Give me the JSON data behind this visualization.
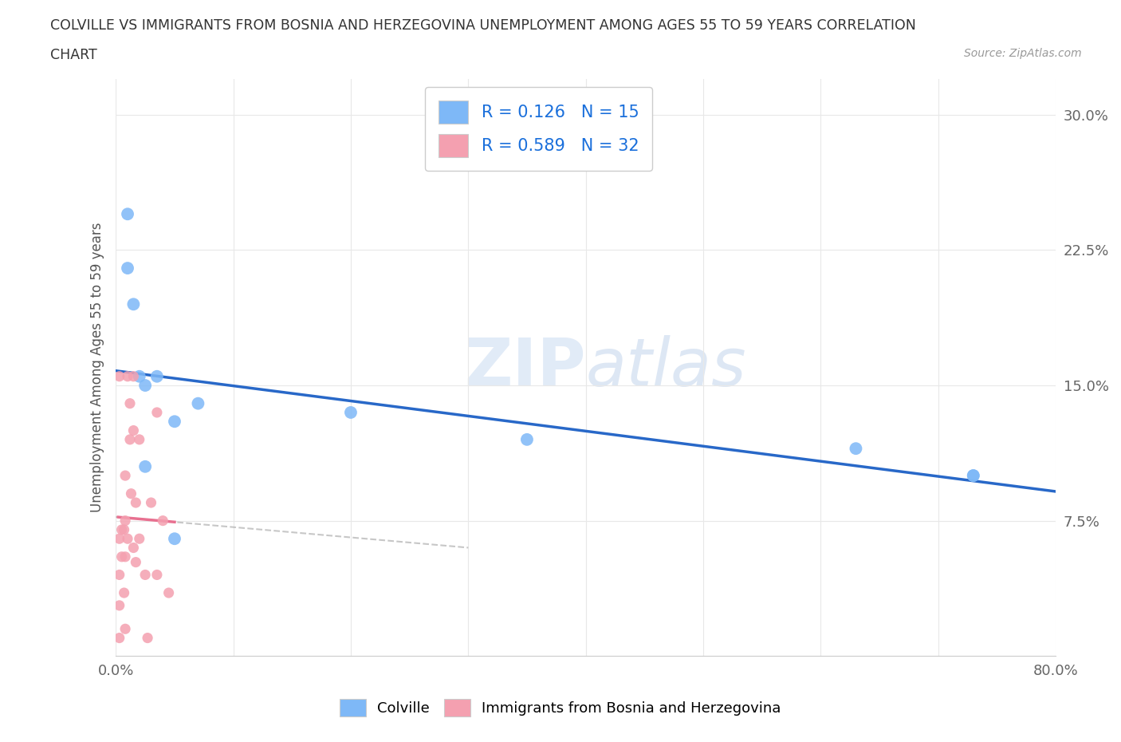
{
  "title_line1": "COLVILLE VS IMMIGRANTS FROM BOSNIA AND HERZEGOVINA UNEMPLOYMENT AMONG AGES 55 TO 59 YEARS CORRELATION",
  "title_line2": "CHART",
  "source_text": "Source: ZipAtlas.com",
  "ylabel": "Unemployment Among Ages 55 to 59 years",
  "xlim": [
    0,
    0.8
  ],
  "ylim": [
    0,
    0.32
  ],
  "xticks": [
    0.0,
    0.1,
    0.2,
    0.3,
    0.4,
    0.5,
    0.6,
    0.7,
    0.8
  ],
  "xticklabels": [
    "0.0%",
    "",
    "",
    "",
    "",
    "",
    "",
    "",
    "80.0%"
  ],
  "yticks": [
    0.0,
    0.075,
    0.15,
    0.225,
    0.3
  ],
  "yticklabels": [
    "",
    "7.5%",
    "15.0%",
    "22.5%",
    "30.0%"
  ],
  "colville_x": [
    0.01,
    0.01,
    0.015,
    0.02,
    0.025,
    0.025,
    0.035,
    0.05,
    0.05,
    0.07,
    0.2,
    0.35,
    0.63,
    0.73,
    0.73
  ],
  "colville_y": [
    0.245,
    0.215,
    0.195,
    0.155,
    0.15,
    0.105,
    0.155,
    0.13,
    0.065,
    0.14,
    0.135,
    0.12,
    0.115,
    0.1,
    0.1
  ],
  "bosnia_x": [
    0.003,
    0.003,
    0.003,
    0.003,
    0.003,
    0.005,
    0.005,
    0.007,
    0.007,
    0.008,
    0.008,
    0.008,
    0.008,
    0.01,
    0.01,
    0.012,
    0.012,
    0.013,
    0.015,
    0.015,
    0.015,
    0.017,
    0.017,
    0.02,
    0.02,
    0.025,
    0.027,
    0.03,
    0.035,
    0.035,
    0.04,
    0.045
  ],
  "bosnia_y": [
    0.155,
    0.065,
    0.045,
    0.028,
    0.01,
    0.07,
    0.055,
    0.07,
    0.035,
    0.1,
    0.075,
    0.055,
    0.015,
    0.155,
    0.065,
    0.14,
    0.12,
    0.09,
    0.155,
    0.125,
    0.06,
    0.085,
    0.052,
    0.12,
    0.065,
    0.045,
    0.01,
    0.085,
    0.135,
    0.045,
    0.075,
    0.035
  ],
  "colville_color": "#7eb8f7",
  "bosnia_color": "#f4a0b0",
  "colville_line_color": "#2868c8",
  "bosnia_line_color": "#e87090",
  "R_colville": 0.126,
  "N_colville": 15,
  "R_bosnia": 0.589,
  "N_bosnia": 32,
  "legend_R_color": "#1a6fdb",
  "watermark_part1": "ZIP",
  "watermark_part2": "atlas",
  "grid_color": "#e8e8e8",
  "background_color": "#ffffff"
}
